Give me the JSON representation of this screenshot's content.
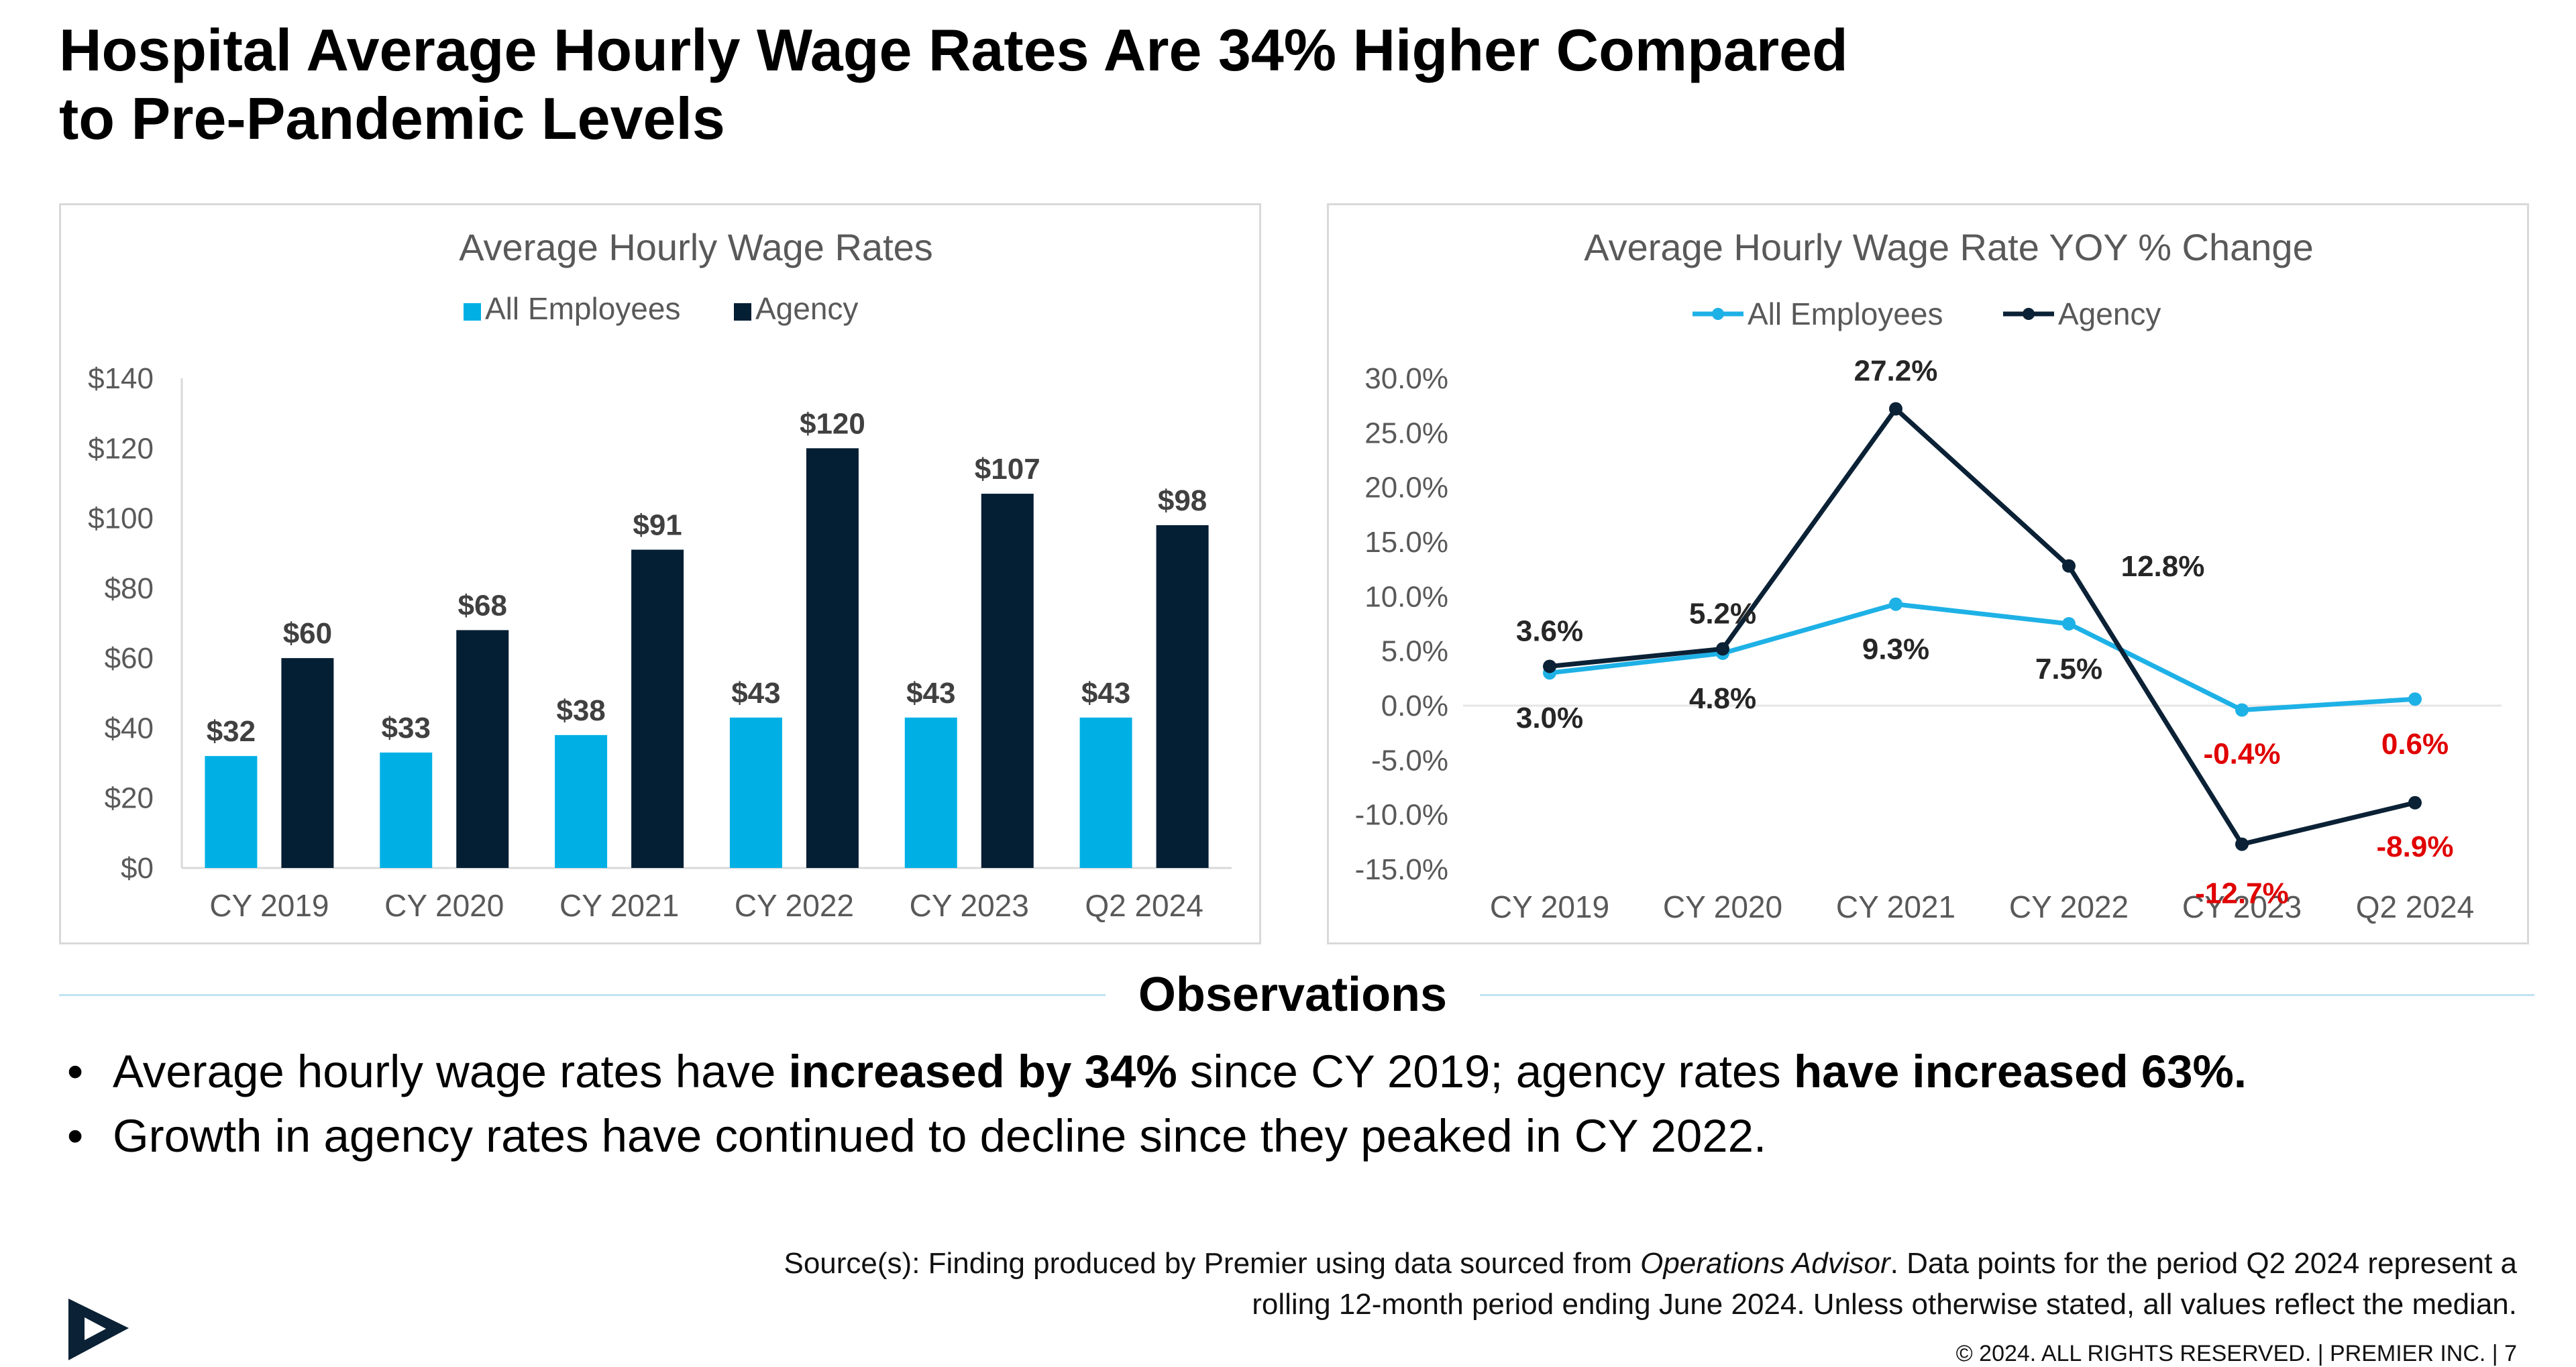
{
  "title_line1": "Hospital Average Hourly Wage Rates Are 34% Higher Compared",
  "title_line2": "to Pre-Pandemic Levels",
  "chart_data": [
    {
      "type": "bar",
      "title": "Average Hourly Wage Rates",
      "categories": [
        "CY 2019",
        "CY 2020",
        "CY 2021",
        "CY 2022",
        "CY 2023",
        "Q2 2024"
      ],
      "series": [
        {
          "name": "All Employees",
          "values": [
            32,
            33,
            38,
            43,
            43,
            43
          ],
          "labels": [
            "$32",
            "$33",
            "$38",
            "$43",
            "$43",
            "$43"
          ],
          "color": "#00b0e5"
        },
        {
          "name": "Agency",
          "values": [
            60,
            68,
            91,
            120,
            107,
            98
          ],
          "labels": [
            "$60",
            "$68",
            "$91",
            "$120",
            "$107",
            "$98"
          ],
          "color": "#041e33"
        }
      ],
      "ylim": [
        0,
        140
      ],
      "yticks": [
        0,
        20,
        40,
        60,
        80,
        100,
        120,
        140
      ],
      "ytick_labels": [
        "$0",
        "$20",
        "$40",
        "$60",
        "$80",
        "$100",
        "$120",
        "$140"
      ],
      "legend_position": "top-center",
      "grid": false,
      "xlabel": "",
      "ylabel": ""
    },
    {
      "type": "line",
      "title": "Average Hourly Wage Rate YOY % Change",
      "categories": [
        "CY 2019",
        "CY 2020",
        "CY 2021",
        "CY 2022",
        "CY 2023",
        "Q2 2024"
      ],
      "series": [
        {
          "name": "All Employees",
          "values": [
            3.0,
            4.8,
            9.3,
            7.5,
            -0.4,
            0.6
          ],
          "labels": [
            "3.0%",
            "4.8%",
            "9.3%",
            "7.5%",
            "-0.4%",
            "0.6%"
          ],
          "label_colors": [
            "#262626",
            "#262626",
            "#262626",
            "#262626",
            "#e00000",
            "#e00000"
          ],
          "color": "#1eb1e6"
        },
        {
          "name": "Agency",
          "values": [
            3.6,
            5.2,
            27.2,
            12.8,
            -12.7,
            -8.9
          ],
          "labels": [
            "3.6%",
            "5.2%",
            "27.2%",
            "12.8%",
            "-12.7%",
            "-8.9%"
          ],
          "label_colors": [
            "#262626",
            "#262626",
            "#262626",
            "#262626",
            "#e00000",
            "#e00000"
          ],
          "color": "#0b2135"
        }
      ],
      "ylim": [
        -15,
        30
      ],
      "yticks": [
        -15,
        -10,
        -5,
        0,
        5,
        10,
        15,
        20,
        25,
        30
      ],
      "ytick_labels": [
        "-15.0%",
        "-10.0%",
        "-5.0%",
        "0.0%",
        "5.0%",
        "10.0%",
        "15.0%",
        "20.0%",
        "25.0%",
        "30.0%"
      ],
      "legend_position": "top-center",
      "grid": false,
      "xlabel": "",
      "ylabel": ""
    }
  ],
  "observations": {
    "heading": "Observations",
    "bullet_char": "•",
    "bullet1": {
      "p1": "Average hourly wage rates have ",
      "b1": "increased by 34%",
      "p2": " since CY 2019; agency rates ",
      "b2": "have increased 63%."
    },
    "bullet2": "Growth in agency rates have continued to decline since they peaked in CY 2022."
  },
  "source": {
    "prefix": "Source(s): Finding produced by Premier using data sourced from ",
    "italic": "Operations Advisor",
    "suffix": ". Data points for the period Q2 2024 represent a rolling 12-month period ending June 2024. Unless otherwise stated, all values reflect the median."
  },
  "footer": "© 2024. ALL RIGHTS RESERVED.  |  PREMIER INC.  |  7",
  "logo_icon": "premier-logo-icon",
  "colors": {
    "accent_cyan": "#00b0e5",
    "navy": "#041e33",
    "negative_red": "#e00000"
  }
}
